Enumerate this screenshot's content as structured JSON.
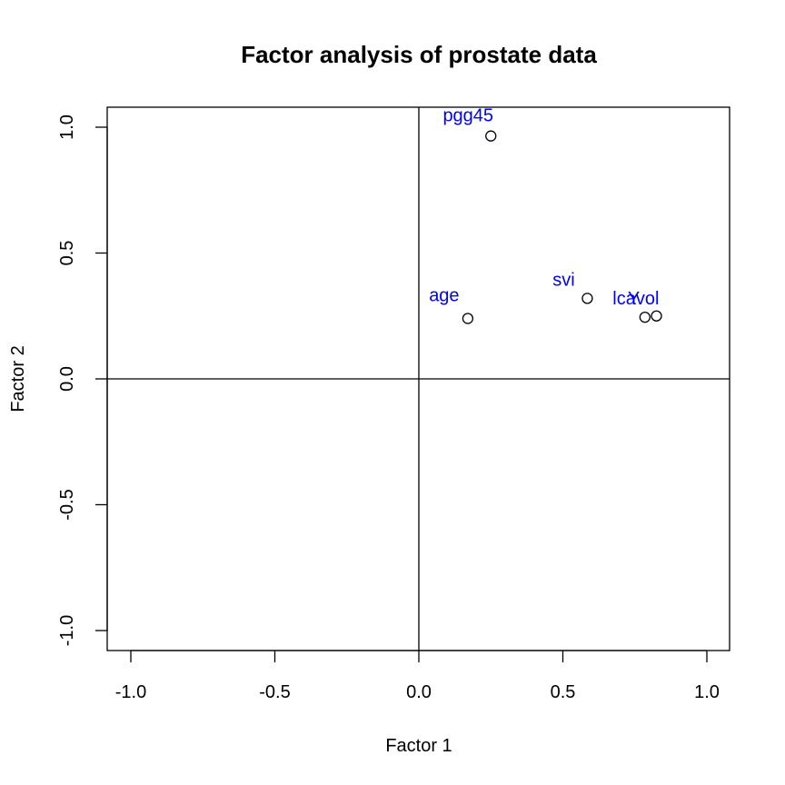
{
  "chart_data": {
    "type": "scatter",
    "title": "Factor analysis of prostate data",
    "xlabel": "Factor 1",
    "ylabel": "Factor 2",
    "xlim": [
      -1.0,
      1.0
    ],
    "ylim": [
      -1.0,
      1.0
    ],
    "x_ticks": [
      -1.0,
      -0.5,
      0.0,
      0.5,
      1.0
    ],
    "y_ticks": [
      -1.0,
      -0.5,
      0.0,
      0.5,
      1.0
    ],
    "x_tick_labels": [
      "-1.0",
      "-0.5",
      "0.0",
      "0.5",
      "1.0"
    ],
    "y_tick_labels": [
      "-1.0",
      "-0.5",
      "0.0",
      "0.5",
      "1.0"
    ],
    "grid": false,
    "reference_lines": {
      "x": 0,
      "y": 0
    },
    "label_color": "#0000ff",
    "point_color": "#000000",
    "points": [
      {
        "label": "pgg45",
        "x": 0.25,
        "y": 0.965
      },
      {
        "label": "age",
        "x": 0.17,
        "y": 0.24
      },
      {
        "label": "svi",
        "x": 0.585,
        "y": 0.32
      },
      {
        "label": "lcavol",
        "x": 0.785,
        "y": 0.245
      },
      {
        "label": "Y",
        "x": 0.825,
        "y": 0.25
      }
    ]
  }
}
